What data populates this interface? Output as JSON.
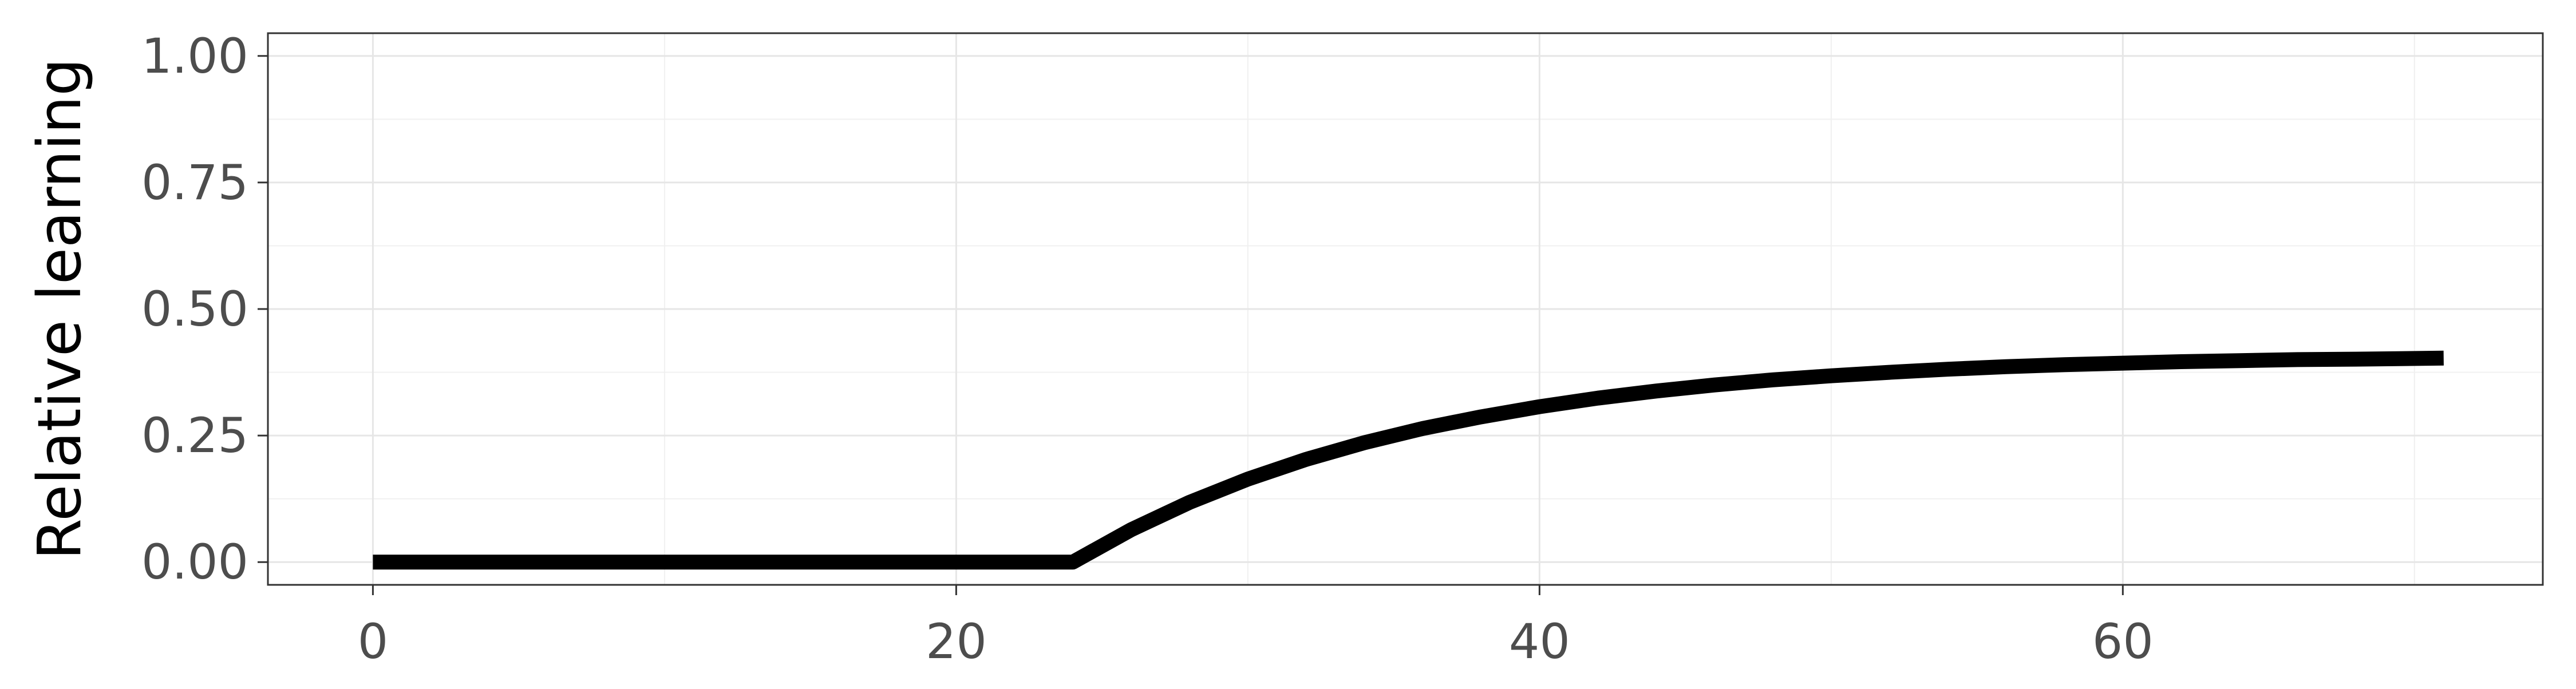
{
  "chart_data": {
    "type": "line",
    "title": "",
    "xlabel": "",
    "ylabel": "Relative learning",
    "xlim": [
      -3.6,
      74.4
    ],
    "ylim": [
      -0.045,
      1.045
    ],
    "x_ticks": [
      0,
      20,
      40,
      60
    ],
    "x_tick_labels": [
      "0",
      "20",
      "40",
      "60"
    ],
    "y_ticks": [
      0,
      0.25,
      0.5,
      0.75,
      1.0
    ],
    "y_tick_labels": [
      "0.00",
      "0.25",
      "0.50",
      "0.75",
      "1.00"
    ],
    "x_minor_ticks": [
      10,
      30,
      50,
      70
    ],
    "y_minor_ticks": [
      0.125,
      0.375,
      0.625,
      0.875
    ],
    "grid": true,
    "legend": "none",
    "series": [
      {
        "x": [
          0,
          10,
          20,
          24,
          26,
          28,
          30,
          32,
          34,
          36,
          38,
          40,
          42,
          44,
          46,
          48,
          50,
          52,
          54,
          56,
          58,
          60,
          62,
          64,
          66,
          68,
          71
        ],
        "y": [
          0,
          0,
          0,
          0,
          0.064,
          0.118,
          0.164,
          0.203,
          0.236,
          0.264,
          0.287,
          0.307,
          0.324,
          0.338,
          0.35,
          0.36,
          0.368,
          0.375,
          0.381,
          0.386,
          0.39,
          0.393,
          0.396,
          0.398,
          0.4,
          0.401,
          0.403
        ],
        "color": "#000000"
      }
    ]
  }
}
